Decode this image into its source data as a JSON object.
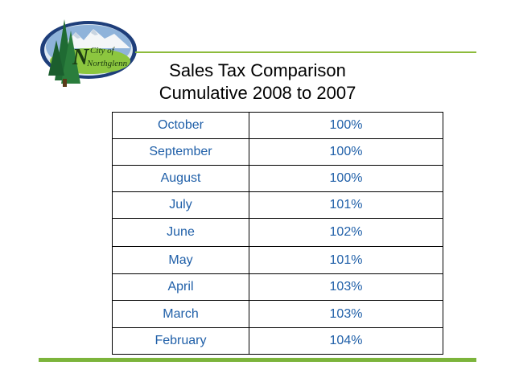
{
  "logo": {
    "text_line1": "City of",
    "text_line2": "Northglenn",
    "initial": "N"
  },
  "title": {
    "line1": "Sales Tax Comparison",
    "line2": "Cumulative 2008 to 2007"
  },
  "table": {
    "rows": [
      {
        "month": "October",
        "value": "100%"
      },
      {
        "month": "September",
        "value": "100%"
      },
      {
        "month": "August",
        "value": "100%"
      },
      {
        "month": "July",
        "value": "101%"
      },
      {
        "month": "June",
        "value": "102%"
      },
      {
        "month": "May",
        "value": "101%"
      },
      {
        "month": "April",
        "value": "103%"
      },
      {
        "month": "March",
        "value": "103%"
      },
      {
        "month": "February",
        "value": "104%"
      }
    ]
  },
  "colors": {
    "accent_green": "#7cb43b",
    "table_text": "#1f5fa8"
  }
}
